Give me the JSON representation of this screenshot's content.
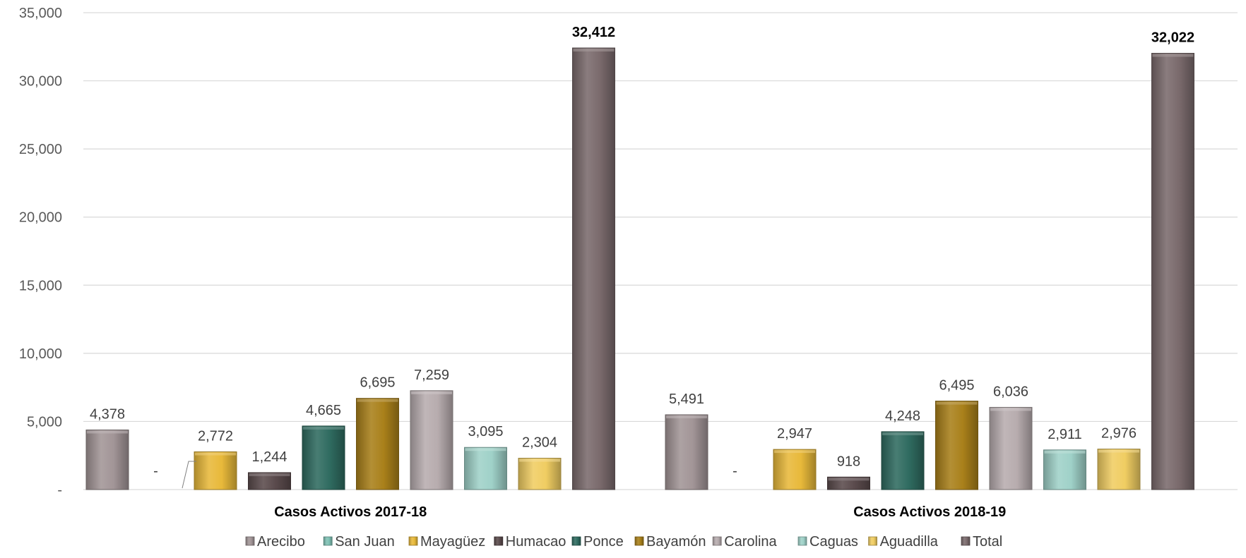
{
  "chart_data": {
    "type": "bar",
    "title": "",
    "xlabel": "",
    "ylabel": "",
    "ylim": [
      0,
      35000
    ],
    "yticks": [
      {
        "value": 0,
        "label": "-"
      },
      {
        "value": 5000,
        "label": "5,000"
      },
      {
        "value": 10000,
        "label": "10,000"
      },
      {
        "value": 15000,
        "label": "15,000"
      },
      {
        "value": 20000,
        "label": "20,000"
      },
      {
        "value": 25000,
        "label": "25,000"
      },
      {
        "value": 30000,
        "label": "30,000"
      },
      {
        "value": 35000,
        "label": "35,000"
      }
    ],
    "grid": true,
    "legend_position": "bottom",
    "categories": [
      "Casos Activos 2017-18",
      "Casos Activos 2018-19"
    ],
    "series": [
      {
        "name": "Arecibo",
        "color": "#a29597",
        "values": [
          4378,
          5491
        ],
        "labels": [
          "4,378",
          "5,491"
        ]
      },
      {
        "name": "San Juan",
        "color": "#7fc1b4",
        "values": [
          0,
          0
        ],
        "labels": [
          "-",
          "-"
        ]
      },
      {
        "name": "Mayagüez",
        "color": "#e8b93a",
        "values": [
          2772,
          2947
        ],
        "labels": [
          "2,772",
          "2,947"
        ]
      },
      {
        "name": "Humacao",
        "color": "#5a4a4c",
        "values": [
          1244,
          918
        ],
        "labels": [
          "1,244",
          "918"
        ]
      },
      {
        "name": "Ponce",
        "color": "#2f6b60",
        "values": [
          4665,
          4248
        ],
        "labels": [
          "4,665",
          "4,248"
        ]
      },
      {
        "name": "Bayamón",
        "color": "#a9801a",
        "values": [
          6695,
          6495
        ],
        "labels": [
          "6,695",
          "6,495"
        ]
      },
      {
        "name": "Carolina",
        "color": "#b7acae",
        "values": [
          7259,
          6036
        ],
        "labels": [
          "7,259",
          "6,036"
        ]
      },
      {
        "name": "Caguas",
        "color": "#9fd1c8",
        "values": [
          3095,
          2911
        ],
        "labels": [
          "3,095",
          "2,911"
        ]
      },
      {
        "name": "Aguadilla",
        "color": "#f0cd62",
        "values": [
          2304,
          2976
        ],
        "labels": [
          "2,304",
          "2,976"
        ]
      },
      {
        "name": "Total",
        "color": "#7a6a6c",
        "values": [
          32412,
          32022
        ],
        "labels": [
          "32,412",
          "32,022"
        ],
        "bold_labels": true
      }
    ]
  }
}
